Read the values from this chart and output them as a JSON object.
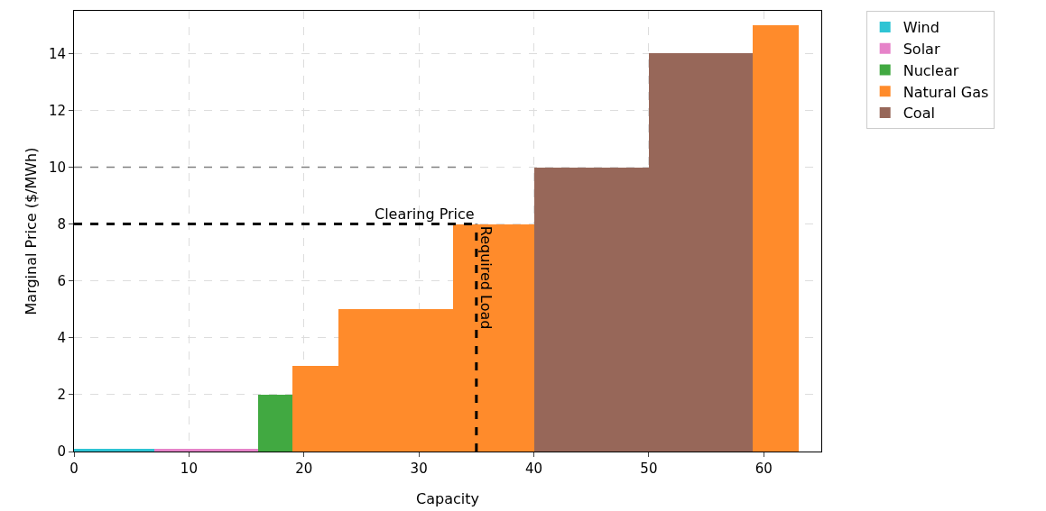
{
  "chart_data": {
    "type": "histogram",
    "xlabel": "Capacity",
    "ylabel": "Marginal Price ($/MWh)",
    "bins": [
      0,
      7,
      16,
      19,
      23,
      33,
      40,
      50,
      59,
      63
    ],
    "series": [
      {
        "name": "Wind",
        "color": "#2ec4d4",
        "values": [
          0.1,
          null,
          null,
          null,
          null,
          null,
          null,
          null,
          null
        ]
      },
      {
        "name": "Solar",
        "color": "#e683c9",
        "values": [
          null,
          0.1,
          null,
          null,
          null,
          null,
          null,
          null,
          null
        ]
      },
      {
        "name": "Nuclear",
        "color": "#41a941",
        "values": [
          null,
          null,
          2,
          null,
          null,
          null,
          null,
          null,
          null
        ]
      },
      {
        "name": "Natural Gas",
        "color": "#ff8b2b",
        "values": [
          null,
          null,
          null,
          3,
          5,
          8,
          null,
          null,
          15
        ]
      },
      {
        "name": "Coal",
        "color": "#976759",
        "values": [
          null,
          null,
          null,
          null,
          null,
          null,
          10,
          14,
          null
        ]
      }
    ],
    "xlim": [
      0,
      65
    ],
    "xticks": [
      0,
      10,
      20,
      30,
      40,
      50,
      60
    ],
    "ylim": [
      0,
      15.5
    ],
    "yticks": [
      0,
      2,
      4,
      6,
      8,
      10,
      12,
      14
    ],
    "ref_lines": [
      {
        "axis": "y",
        "value": 10,
        "color": "#808080",
        "line_style": "dashed"
      },
      {
        "axis": "y",
        "value": 8,
        "label": "Clearing Price",
        "color": "#000000",
        "line_style": "dashed"
      },
      {
        "axis": "x",
        "value": 35,
        "label": "Required Load",
        "color": "#000000",
        "line_style": "dashed"
      }
    ],
    "grid": true,
    "legend": "top right"
  }
}
